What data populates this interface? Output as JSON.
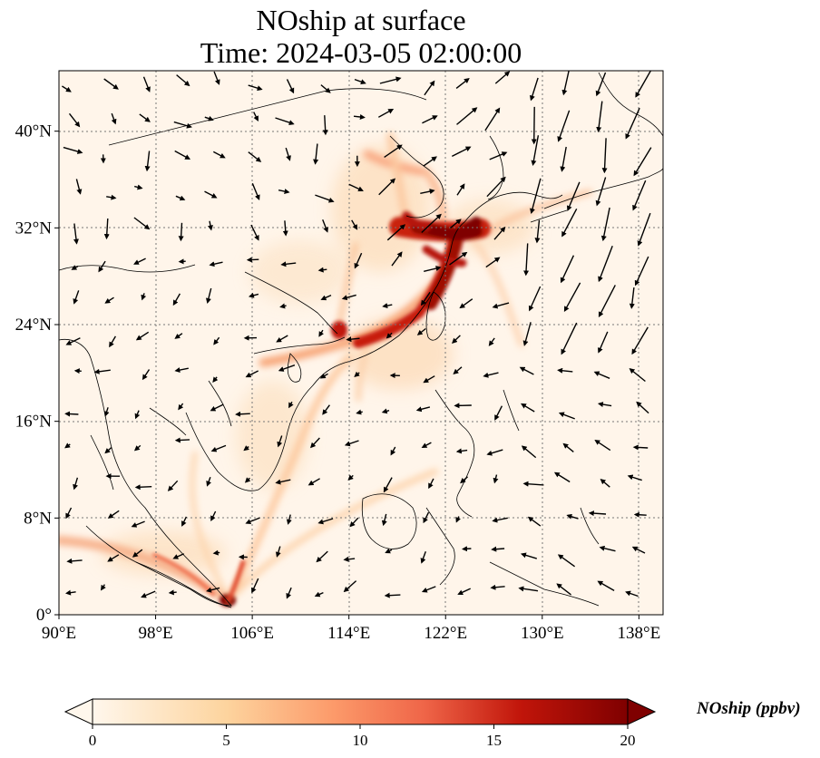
{
  "title": {
    "line1": "NOship at surface",
    "line2": "Time: 2024-03-05 02:00:00"
  },
  "map": {
    "lon_range": [
      90,
      140
    ],
    "lat_range": [
      0,
      45
    ],
    "lon_ticks": [
      {
        "value": 90,
        "label": "90°E"
      },
      {
        "value": 98,
        "label": "98°E"
      },
      {
        "value": 106,
        "label": "106°E"
      },
      {
        "value": 114,
        "label": "114°E"
      },
      {
        "value": 122,
        "label": "122°E"
      },
      {
        "value": 130,
        "label": "130°E"
      },
      {
        "value": 138,
        "label": "138°E"
      }
    ],
    "lat_ticks": [
      {
        "value": 0,
        "label": "0°"
      },
      {
        "value": 8,
        "label": "8°N"
      },
      {
        "value": 16,
        "label": "16°N"
      },
      {
        "value": 24,
        "label": "24°N"
      },
      {
        "value": 32,
        "label": "32°N"
      },
      {
        "value": 40,
        "label": "40°N"
      }
    ],
    "gridlines": "dotted",
    "field": "NOship",
    "units": "ppbv",
    "colormap": "OrRd",
    "colors": {
      "low": "#fff7ec",
      "mid": "#fdd49e",
      "high": "#d7301f",
      "max": "#7f0000",
      "coast": "#000000",
      "grid": "#777777",
      "arrow": "#000000"
    }
  },
  "colorbar": {
    "label": "NOship (ppbv)",
    "min": 0,
    "max": 20,
    "ticks": [
      {
        "value": 0,
        "label": "0"
      },
      {
        "value": 5,
        "label": "5"
      },
      {
        "value": 10,
        "label": "10"
      },
      {
        "value": 15,
        "label": "15"
      },
      {
        "value": 20,
        "label": "20"
      }
    ],
    "extend": "both"
  }
}
